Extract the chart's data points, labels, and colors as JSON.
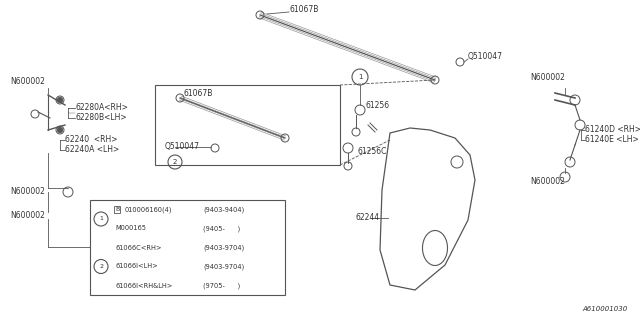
{
  "bg_color": "#ffffff",
  "line_color": "#555555",
  "text_color": "#333333",
  "part_number_label": "A610001030",
  "table": {
    "rows": [
      {
        "marker": "B",
        "part": "010006160(4)",
        "date": "(9403-9404)"
      },
      {
        "marker": "",
        "part": "M000165",
        "date": "(9405-      )"
      },
      {
        "marker": "",
        "part": "61066C<RH>",
        "date": "(9403-9704)"
      },
      {
        "marker": "",
        "part": "61066I<LH>",
        "date": "(9403-9704)"
      },
      {
        "marker": "",
        "part": "61066I<RH&LH>",
        "date": "(9705-      )"
      }
    ]
  }
}
